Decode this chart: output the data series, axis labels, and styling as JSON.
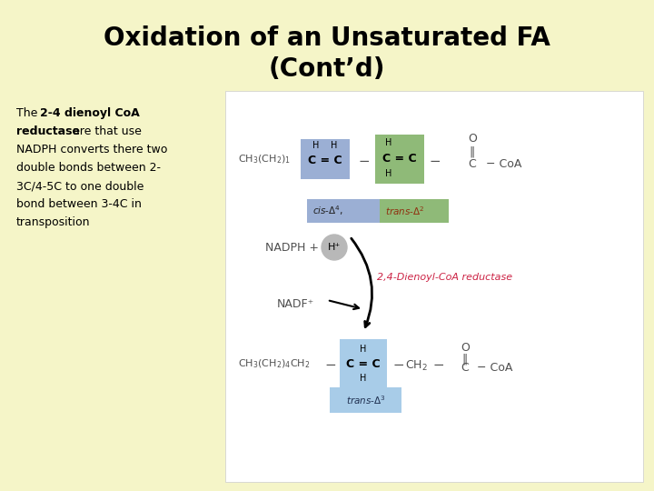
{
  "bg_color": "#f5f5c8",
  "title_line1": "Oxidation of an Unsaturated FA",
  "title_line2": "(Cont’d)",
  "title_fontsize": 20,
  "title_fontweight": "bold",
  "body_fontsize": 9,
  "body_lines": [
    {
      "text": "The ",
      "bold": false
    },
    {
      "text": "2-4 dienoyl CoA",
      "bold": true
    },
    {
      "text": "reductase",
      "bold": true
    },
    {
      "text": " are that use",
      "bold": false
    },
    {
      "text": "NADPH converts there two",
      "bold": false
    },
    {
      "text": "double bonds between 2-",
      "bold": false
    },
    {
      "text": "3C/4-5C to one double",
      "bold": false
    },
    {
      "text": "bond between 3-4C in",
      "bold": false
    },
    {
      "text": "transposition",
      "bold": false
    }
  ],
  "diag_bg": "#ffffff",
  "blue_box_color": "#9bafd4",
  "green_box_color": "#8fba78",
  "cis_box_color": "#9bafd4",
  "trans_box_color": "#8fba78",
  "bottom_box_color": "#a8cce8",
  "bottom_label_color": "#a8cce8",
  "arrow_color": "#404040",
  "reductase_color": "#cc2244",
  "mol_color": "#505050"
}
